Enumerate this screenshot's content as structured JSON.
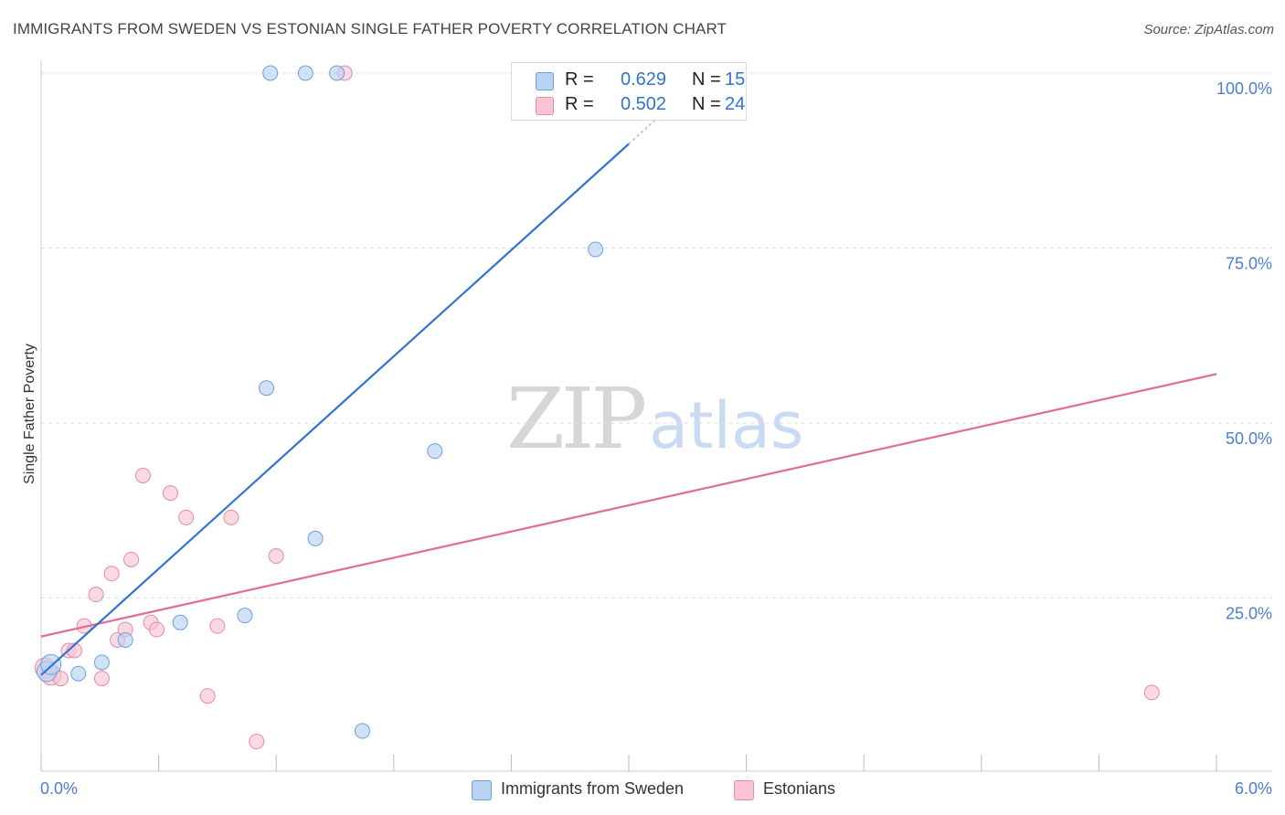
{
  "title": "IMMIGRANTS FROM SWEDEN VS ESTONIAN SINGLE FATHER POVERTY CORRELATION CHART",
  "source": "Source: ZipAtlas.com",
  "watermark": {
    "zip": "ZIP",
    "atlas": "atlas"
  },
  "legend_top": {
    "rows": [
      {
        "r_label": "R =",
        "r_value": "0.629",
        "n_label": "N =",
        "n_value": "15"
      },
      {
        "r_label": "R =",
        "r_value": "0.502",
        "n_label": "N =",
        "n_value": "24"
      }
    ]
  },
  "chart_data": {
    "type": "scatter",
    "title": "IMMIGRANTS FROM SWEDEN VS ESTONIAN SINGLE FATHER POVERTY CORRELATION CHART",
    "xlabel": "",
    "ylabel": "Single Father Poverty",
    "xlim": [
      0,
      6
    ],
    "ylim": [
      0,
      100
    ],
    "x_tick_labels": [
      "0.0%",
      "6.0%"
    ],
    "y_tick_values": [
      25,
      50,
      75,
      100
    ],
    "y_tick_labels": [
      "25.0%",
      "50.0%",
      "75.0%",
      "100.0%"
    ],
    "grid": true,
    "legend_position": "bottom-center",
    "colors": {
      "sweden_fill": "#b9d3f3",
      "sweden_stroke": "#6d9fdd",
      "sweden_line": "#2f74d0",
      "estonia_fill": "#f8c4d3",
      "estonia_stroke": "#e88aa7",
      "estonia_line": "#e06c98",
      "tick_label": "#4a7fd0",
      "grid": "#dddddd"
    },
    "series": [
      {
        "name": "Immigrants from Sweden",
        "x": [
          0.03,
          0.05,
          0.19,
          0.31,
          0.43,
          0.71,
          1.04,
          1.17,
          1.35,
          1.51,
          1.15,
          1.4,
          1.64,
          2.01,
          2.83
        ],
        "y": [
          14.5,
          15.5,
          14.2,
          15.8,
          19.0,
          21.5,
          22.5,
          100,
          100,
          100,
          55.0,
          33.5,
          6.0,
          46.0,
          74.8
        ],
        "trend": {
          "x": [
            0.0,
            3.4
          ],
          "y": [
            14.0,
            100.0
          ]
        }
      },
      {
        "name": "Estonians",
        "x": [
          0.02,
          0.05,
          0.1,
          0.14,
          0.17,
          0.22,
          0.28,
          0.31,
          0.36,
          0.39,
          0.43,
          0.46,
          0.52,
          0.56,
          0.59,
          0.66,
          0.74,
          0.85,
          0.9,
          0.97,
          1.1,
          1.2,
          1.55,
          5.67
        ],
        "y": [
          15.0,
          14.0,
          13.5,
          17.5,
          17.5,
          21.0,
          25.5,
          13.5,
          28.5,
          19.0,
          20.5,
          30.5,
          42.5,
          21.5,
          20.5,
          40.0,
          36.5,
          11.0,
          21.0,
          36.5,
          4.5,
          31.0,
          100,
          11.5
        ],
        "trend": {
          "x": [
            0.0,
            6.0
          ],
          "y": [
            19.5,
            57.0
          ]
        }
      }
    ]
  },
  "bottom_legend": [
    {
      "label": "Immigrants from Sweden"
    },
    {
      "label": "Estonians"
    }
  ]
}
